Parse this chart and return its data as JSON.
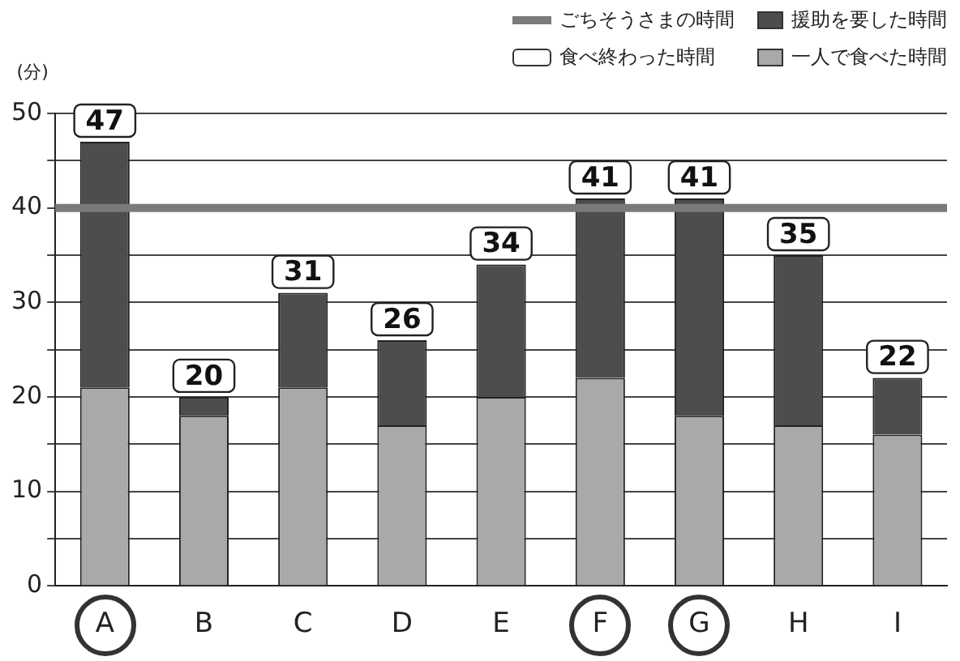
{
  "chart_data": {
    "type": "bar",
    "stacked": true,
    "categories": [
      "A",
      "B",
      "C",
      "D",
      "E",
      "F",
      "G",
      "H",
      "I"
    ],
    "series": [
      {
        "name": "一人で食べた時間",
        "color": "#a9a9a9",
        "values": [
          21,
          18,
          21,
          17,
          20,
          22,
          18,
          17,
          16
        ]
      },
      {
        "name": "援助を要した時間",
        "color": "#4d4d4d",
        "values": [
          26,
          2,
          10,
          9,
          14,
          19,
          23,
          18,
          6
        ]
      }
    ],
    "totals": [
      "47",
      "20",
      "31",
      "26",
      "34",
      "41",
      "41",
      "35",
      "22"
    ],
    "annotations": [
      "食べ終わった時間"
    ],
    "ref_lines": [
      {
        "axis": "y",
        "value": 40,
        "label": "ごちそうさまの時間",
        "color": "#7a7a7a"
      }
    ],
    "ylabel": "(分)",
    "ylim": [
      0,
      50
    ],
    "yticks": [
      0,
      {
        "value": 5,
        "label": null
      },
      10,
      {
        "value": 15,
        "label": null
      },
      20,
      {
        "value": 25,
        "label": null
      },
      30,
      {
        "value": 35,
        "label": null
      },
      40,
      {
        "value": 45,
        "label": null
      },
      50
    ],
    "grid": "y",
    "legend": "top right"
  }
}
